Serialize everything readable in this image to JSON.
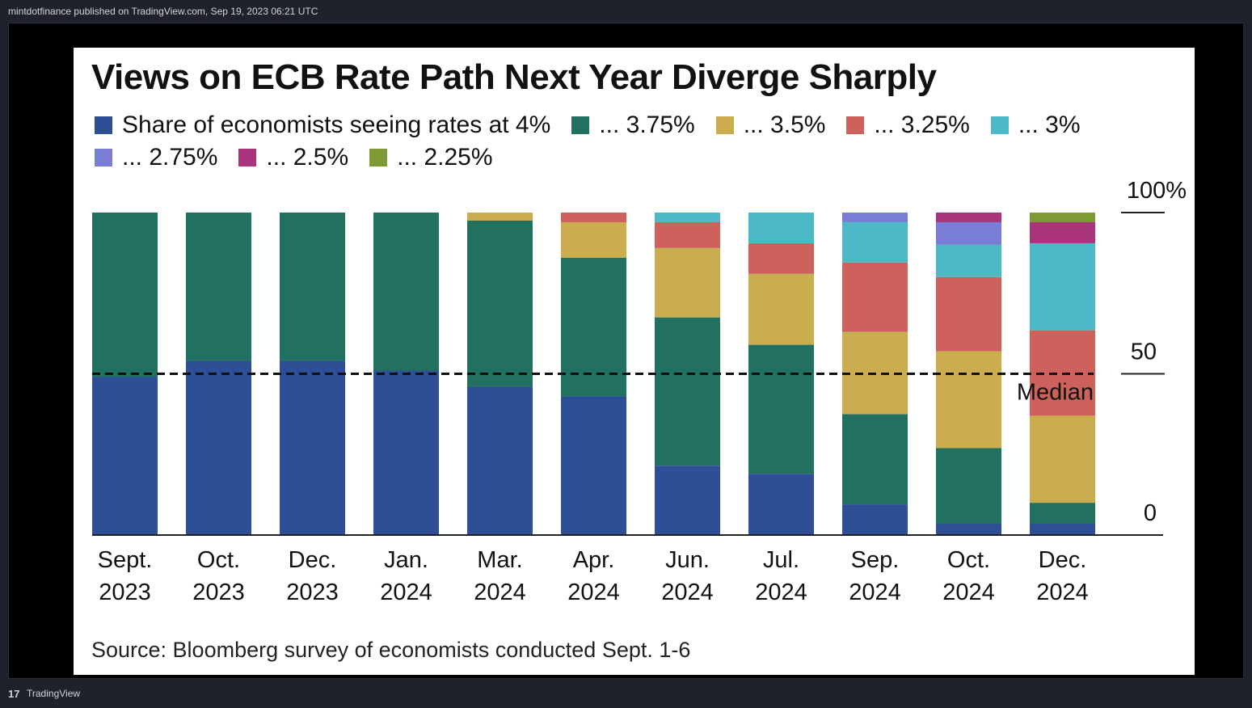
{
  "header": {
    "publish_info": "mintdotfinance published on TradingView.com, Sep 19, 2023 06:21 UTC"
  },
  "footer": {
    "logo_glyph": "17",
    "brand": "TradingView"
  },
  "chart_data": {
    "type": "bar",
    "stacked": true,
    "title": "Views on ECB Rate Path Next Year Diverge Sharply",
    "source": "Source: Bloomberg survey of economists conducted Sept. 1-6",
    "categories": [
      [
        "Sept.",
        "2023"
      ],
      [
        "Oct.",
        "2023"
      ],
      [
        "Dec.",
        "2023"
      ],
      [
        "Jan.",
        "2024"
      ],
      [
        "Mar.",
        "2024"
      ],
      [
        "Apr.",
        "2024"
      ],
      [
        "Jun.",
        "2024"
      ],
      [
        "Jul.",
        "2024"
      ],
      [
        "Sep.",
        "2024"
      ],
      [
        "Oct.",
        "2024"
      ],
      [
        "Dec.",
        "2024"
      ]
    ],
    "series": [
      {
        "name": "4%",
        "legend_label": "Share of economists seeing rates at 4%",
        "color": "#2e4f96",
        "values": [
          49,
          54,
          54,
          51,
          46,
          43,
          21.5,
          19,
          9.5,
          3.5,
          3.5
        ]
      },
      {
        "name": "3.75%",
        "legend_label": "... 3.75%",
        "color": "#22705f",
        "values": [
          51,
          46,
          46,
          49,
          51.5,
          43,
          46,
          40,
          28,
          23.5,
          6.5
        ]
      },
      {
        "name": "3.5%",
        "legend_label": "... 3.5%",
        "color": "#c9ad4f",
        "values": [
          0,
          0,
          0,
          0,
          2.5,
          11,
          21.5,
          22,
          25.5,
          30,
          27
        ]
      },
      {
        "name": "3.25%",
        "legend_label": "... 3.25%",
        "color": "#cd625c",
        "values": [
          0,
          0,
          0,
          0,
          0,
          3,
          8,
          9.5,
          21.5,
          23,
          26.5
        ]
      },
      {
        "name": "3%",
        "legend_label": "... 3%",
        "color": "#4db8c6",
        "values": [
          0,
          0,
          0,
          0,
          0,
          0,
          3,
          9.5,
          12.5,
          10,
          27
        ]
      },
      {
        "name": "2.75%",
        "legend_label": "... 2.75%",
        "color": "#7a7dd6",
        "values": [
          0,
          0,
          0,
          0,
          0,
          0,
          0,
          0,
          3,
          7,
          0
        ]
      },
      {
        "name": "2.5%",
        "legend_label": "... 2.5%",
        "color": "#a8347b",
        "values": [
          0,
          0,
          0,
          0,
          0,
          0,
          0,
          0,
          0,
          3,
          6.5
        ]
      },
      {
        "name": "2.25%",
        "legend_label": "... 2.25%",
        "color": "#7d9a35",
        "values": [
          0,
          0,
          0,
          0,
          0,
          0,
          0,
          0,
          0,
          0,
          3
        ]
      }
    ],
    "ylim": [
      0,
      100
    ],
    "yticks": [
      {
        "value": 100,
        "label": "100%"
      },
      {
        "value": 50,
        "label": "50"
      },
      {
        "value": 0,
        "label": "0"
      }
    ],
    "median_line": {
      "value": 50,
      "label": "Median"
    },
    "legend_position": "top-left"
  }
}
